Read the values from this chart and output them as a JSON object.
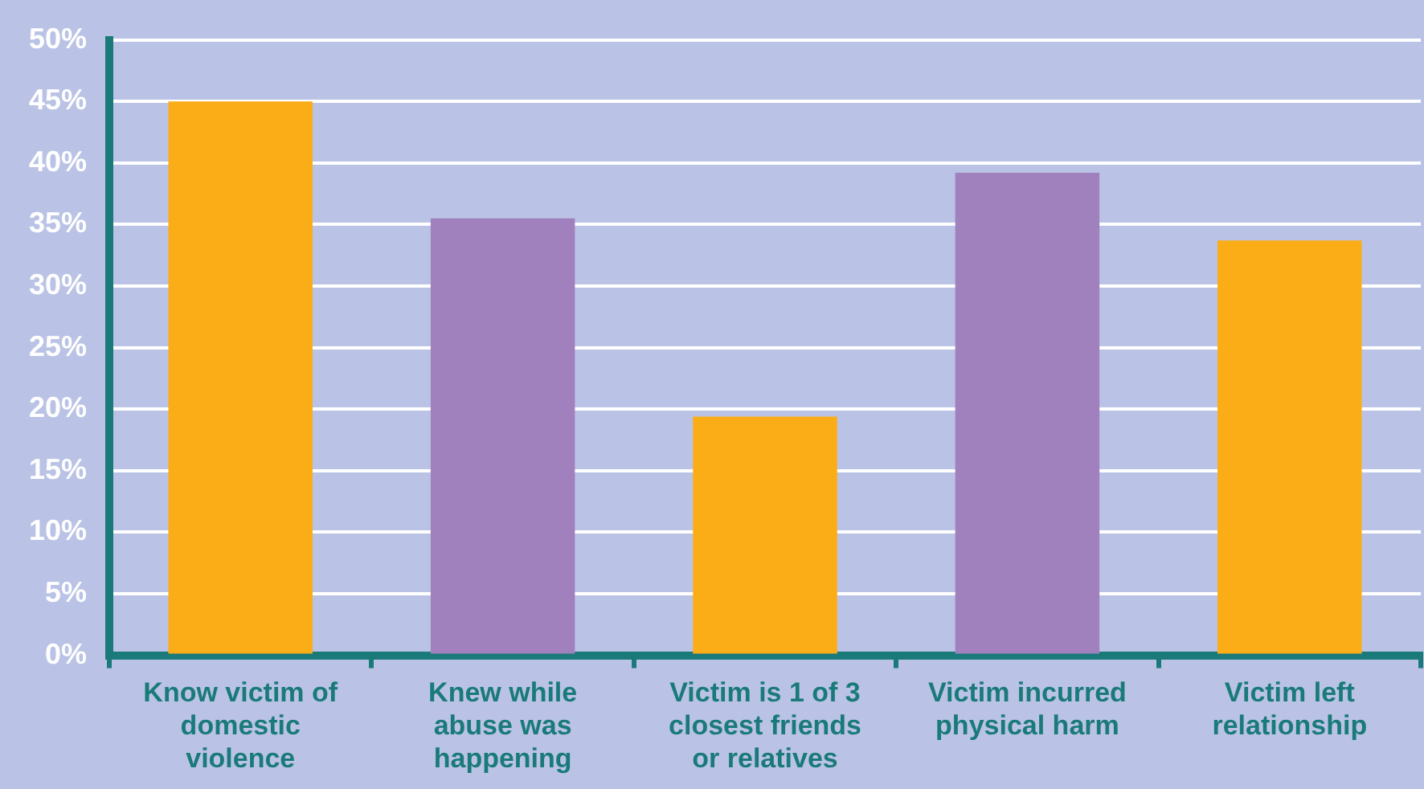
{
  "chart_data": {
    "type": "bar",
    "categories": [
      "Know victim of domestic violence",
      "Knew while abuse was happening",
      "Victim is 1 of 3 closest friends or relatives",
      "Victim incurred physical harm",
      "Victim left relationship"
    ],
    "values": [
      45,
      35.5,
      19.4,
      39.2,
      33.7
    ],
    "colors": [
      "#fbad18",
      "#a081bd",
      "#fbad18",
      "#a081bd",
      "#fbad18"
    ],
    "ylim": [
      0,
      50
    ],
    "yticks": [
      {
        "value": 0,
        "label": "0%"
      },
      {
        "value": 5,
        "label": "5%"
      },
      {
        "value": 10,
        "label": "10%"
      },
      {
        "value": 15,
        "label": "15%"
      },
      {
        "value": 20,
        "label": "20%"
      },
      {
        "value": 25,
        "label": "25%"
      },
      {
        "value": 30,
        "label": "30%"
      },
      {
        "value": 35,
        "label": "35%"
      },
      {
        "value": 40,
        "label": "40%"
      },
      {
        "value": 45,
        "label": "45%"
      },
      {
        "value": 50,
        "label": "50%"
      }
    ],
    "grid": "y"
  }
}
